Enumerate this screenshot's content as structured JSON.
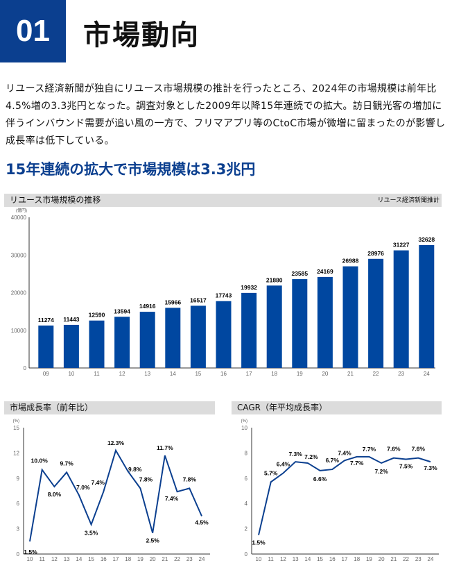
{
  "header": {
    "number": "01",
    "title": "市場動向"
  },
  "paragraph": "リユース経済新聞が独自にリユース市場規模の推計を行ったところ、2024年の市場規模は前年比4.5%増の3.3兆円となった。調査対象とした2009年以降15年連続での拡大。訪日観光客の増加に伴うインバウンド需要が追い風の一方で、フリマアプリ等のCtoC市場が微増に留まったのが影響し成長率は低下している。",
  "subtitle": "15年連続の拡大で市場規模は3.3兆円",
  "colors": {
    "accent": "#0b3f8f",
    "bar": "#0047a0",
    "line": "#0b3f8f",
    "header_bg": "#dcdcdc"
  },
  "chart_data": [
    {
      "type": "bar",
      "title": "リユース市場規模の推移",
      "source": "リユース経済新聞推計",
      "ylabel": "(億円)",
      "ylim": [
        0,
        40000
      ],
      "yticks": [
        "0",
        "10000",
        "20000",
        "30000",
        "40000"
      ],
      "categories": [
        "09",
        "10",
        "11",
        "12",
        "13",
        "14",
        "15",
        "16",
        "17",
        "18",
        "19",
        "20",
        "21",
        "22",
        "23",
        "24"
      ],
      "values": [
        11274,
        11443,
        12590,
        13594,
        14916,
        15966,
        16517,
        17743,
        19932,
        21880,
        23585,
        24169,
        26988,
        28976,
        31227,
        32628
      ]
    },
    {
      "type": "line",
      "title": "市場成長率（前年比）",
      "ylabel": "(%)",
      "ylim": [
        0,
        15
      ],
      "yticks": [
        "0",
        "3",
        "6",
        "9",
        "12",
        "15"
      ],
      "categories": [
        "10",
        "11",
        "12",
        "13",
        "14",
        "15",
        "16",
        "17",
        "18",
        "19",
        "20",
        "21",
        "22",
        "23",
        "24"
      ],
      "values": [
        1.5,
        10.0,
        8.0,
        9.7,
        7.0,
        3.5,
        7.4,
        12.3,
        9.8,
        7.8,
        2.5,
        11.7,
        7.4,
        7.8,
        4.5
      ],
      "labels": [
        "1.5%",
        "10.0%",
        "8.0%",
        "9.7%",
        "7.0%",
        "3.5%",
        "7.4%",
        "12.3%",
        "9.8%",
        "7.8%",
        "2.5%",
        "11.7%",
        "7.4%",
        "7.8%",
        "4.5%"
      ]
    },
    {
      "type": "line",
      "title": "CAGR（年平均成長率）",
      "ylabel": "(%)",
      "ylim": [
        0,
        10
      ],
      "yticks": [
        "0",
        "2",
        "4",
        "6",
        "8",
        "10"
      ],
      "categories": [
        "10",
        "11",
        "12",
        "13",
        "14",
        "15",
        "16",
        "17",
        "18",
        "19",
        "20",
        "21",
        "22",
        "23",
        "24"
      ],
      "values": [
        1.5,
        5.7,
        6.4,
        7.3,
        7.2,
        6.6,
        6.7,
        7.4,
        7.7,
        7.7,
        7.2,
        7.6,
        7.5,
        7.6,
        7.3
      ],
      "labels": [
        "1.5%",
        "5.7%",
        "6.4%",
        "7.3%",
        "7.2%",
        "6.6%",
        "6.7%",
        "7.4%",
        "7.7%",
        "7.7%",
        "7.2%",
        "7.6%",
        "7.5%",
        "7.6%",
        "7.3%"
      ]
    }
  ]
}
